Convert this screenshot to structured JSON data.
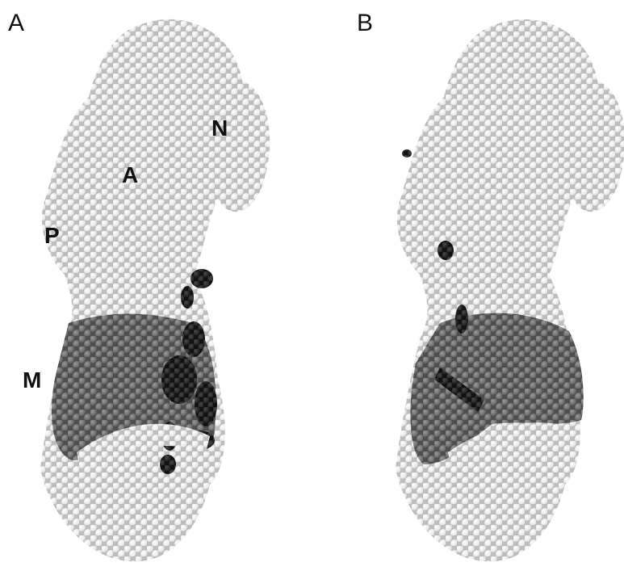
{
  "panels": [
    {
      "label": "A",
      "annotations": [
        "N",
        "A",
        "P",
        "M"
      ]
    },
    {
      "label": "B"
    }
  ]
}
